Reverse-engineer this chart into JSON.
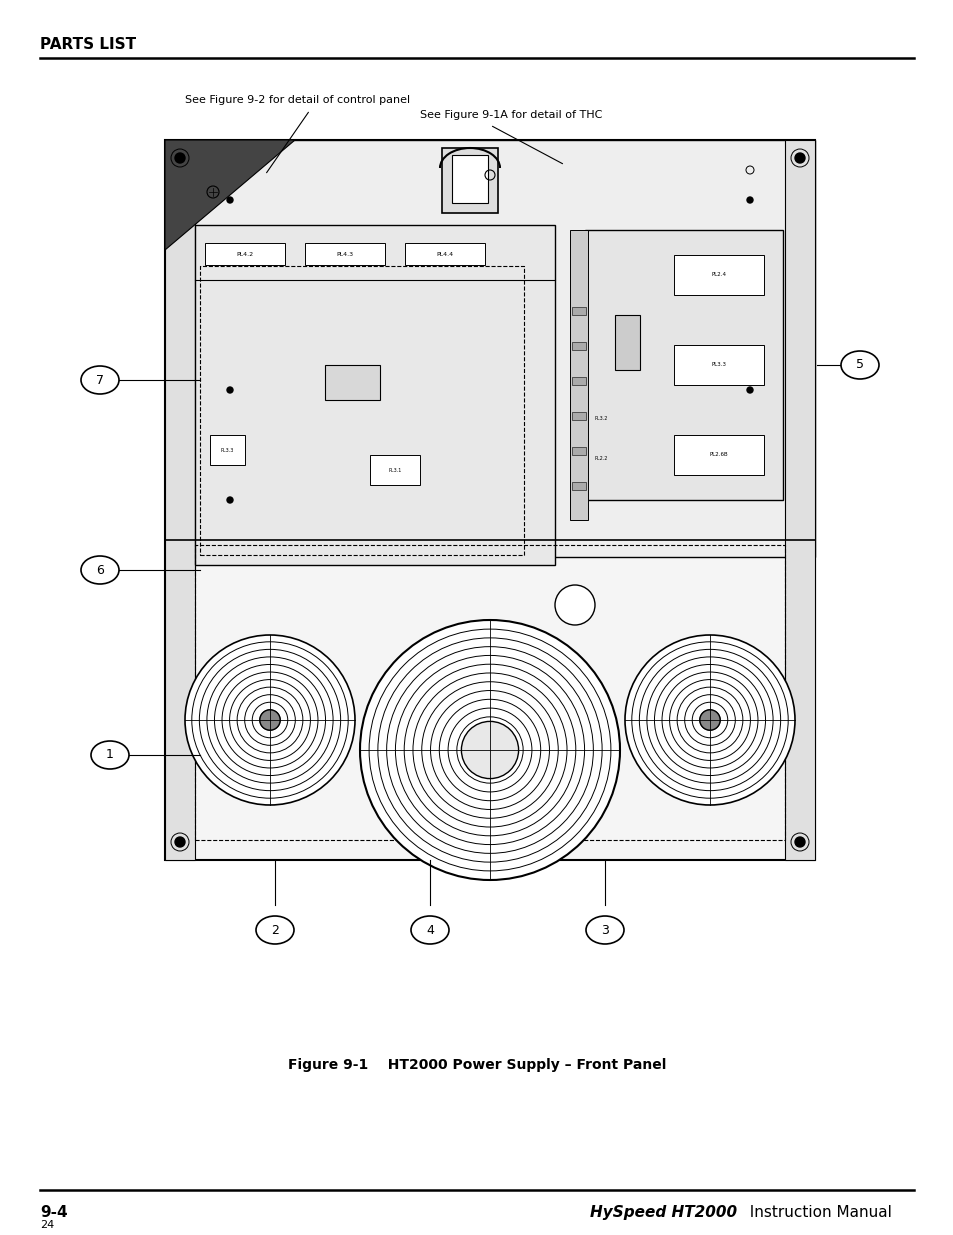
{
  "page_width": 9.54,
  "page_height": 12.35,
  "bg_color": "#ffffff",
  "title": "PARTS LIST",
  "title_fontsize": 11,
  "caption": "Figure 9-1    HT2000 Power Supply – Front Panel",
  "caption_fontsize": 10,
  "footer_left": "9-4",
  "footer_right_bold": "HySpeed HT2000",
  "footer_right_normal": "  Instruction Manual",
  "footer_small": "24",
  "footer_fontsize": 11,
  "annotation1": "See Figure 9-2 for detail of control panel",
  "annotation2": "See Figure 9-1A for detail of THC",
  "lc": "#000000",
  "bg_diagram": "#ffffff",
  "gray_light": "#f0f0f0",
  "gray_mid": "#d8d8d8"
}
